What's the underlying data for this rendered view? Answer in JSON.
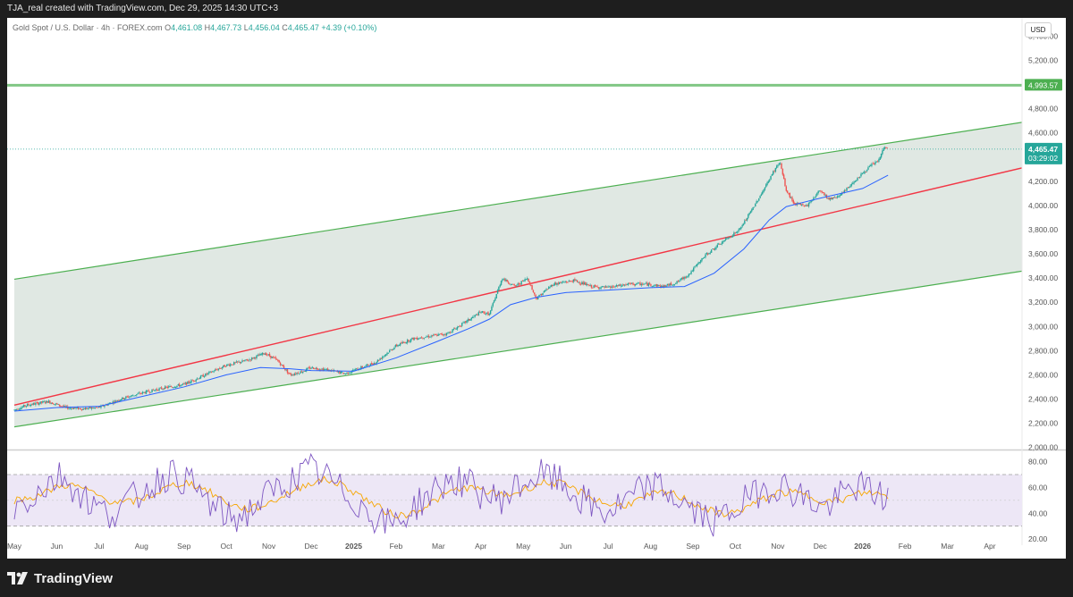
{
  "header": {
    "caption": "TJA_real created with TradingView.com, Dec 29, 2025 14:30 UTC+3"
  },
  "legend": {
    "symbol": "Gold Spot / U.S. Dollar · 4h · FOREX.com",
    "open_label": "O",
    "open": "4,461.08",
    "high_label": "H",
    "high": "4,467.73",
    "low_label": "L",
    "low": "4,456.04",
    "close_label": "C",
    "close": "4,465.47",
    "change": "+4.39 (+0.10%)"
  },
  "currency_button": "USD",
  "footer": {
    "brand": "TradingView"
  },
  "colors": {
    "up": "#26a69a",
    "down": "#ef5350",
    "channel": "#4caf50",
    "channel_fill": "#dde5e0",
    "mid_line": "#f23645",
    "ma": "#2962ff",
    "rsi": "#7e57c2",
    "rsi_ma": "#f7a600",
    "rsi_band": "#ede7f6",
    "target_line": "#81c784",
    "target_tag": "#4caf50",
    "price_tag": "#26a69a"
  },
  "chart_data": [
    {
      "type": "candlestick",
      "title": "Gold Spot / U.S. Dollar · 4h · FOREX.com",
      "y_axis_ticks": [
        "5,400.00",
        "5,200.00",
        "4,800.00",
        "4,600.00",
        "4,200.00",
        "4,000.00",
        "3,800.00",
        "3,600.00",
        "3,400.00",
        "3,200.00",
        "3,000.00",
        "2,800.00",
        "2,600.00",
        "2,400.00",
        "2,200.00",
        "2,000.00"
      ],
      "y_tick_values": [
        5400,
        5200,
        4800,
        4600,
        4200,
        4000,
        3800,
        3600,
        3400,
        3200,
        3000,
        2800,
        2600,
        2400,
        2200,
        2000
      ],
      "ylim": [
        1990,
        5550
      ],
      "x_axis_ticks": [
        "May",
        "Jun",
        "Jul",
        "Aug",
        "Sep",
        "Oct",
        "Nov",
        "Dec",
        "2025",
        "Feb",
        "Mar",
        "Apr",
        "May",
        "Jun",
        "Jul",
        "Aug",
        "Sep",
        "Oct",
        "Nov",
        "Dec",
        "2026",
        "Feb",
        "Mar",
        "Apr"
      ],
      "x_tick_index": [
        0,
        1,
        2,
        3,
        4,
        5,
        6,
        7,
        8,
        9,
        10,
        11,
        12,
        13,
        14,
        15,
        16,
        17,
        18,
        19,
        20,
        21,
        22,
        23
      ],
      "price_path": [
        [
          0,
          2310
        ],
        [
          0.3,
          2350
        ],
        [
          0.8,
          2380
        ],
        [
          1.2,
          2330
        ],
        [
          1.6,
          2320
        ],
        [
          2,
          2330
        ],
        [
          2.5,
          2400
        ],
        [
          3,
          2450
        ],
        [
          3.5,
          2490
        ],
        [
          4,
          2520
        ],
        [
          4.5,
          2600
        ],
        [
          5,
          2680
        ],
        [
          5.5,
          2720
        ],
        [
          5.9,
          2780
        ],
        [
          6.2,
          2720
        ],
        [
          6.5,
          2600
        ],
        [
          6.8,
          2630
        ],
        [
          7,
          2660
        ],
        [
          7.4,
          2640
        ],
        [
          7.8,
          2610
        ],
        [
          8.1,
          2650
        ],
        [
          8.5,
          2700
        ],
        [
          9,
          2840
        ],
        [
          9.4,
          2900
        ],
        [
          9.8,
          2920
        ],
        [
          10.2,
          2940
        ],
        [
          10.7,
          3050
        ],
        [
          11,
          3120
        ],
        [
          11.2,
          3100
        ],
        [
          11.5,
          3400
        ],
        [
          11.8,
          3330
        ],
        [
          12.1,
          3400
        ],
        [
          12.3,
          3230
        ],
        [
          12.7,
          3350
        ],
        [
          13.2,
          3380
        ],
        [
          13.6,
          3330
        ],
        [
          14,
          3320
        ],
        [
          14.5,
          3350
        ],
        [
          14.9,
          3350
        ],
        [
          15.3,
          3330
        ],
        [
          15.6,
          3360
        ],
        [
          15.9,
          3430
        ],
        [
          16.3,
          3590
        ],
        [
          16.7,
          3700
        ],
        [
          17.1,
          3800
        ],
        [
          17.4,
          3970
        ],
        [
          17.7,
          4150
        ],
        [
          17.9,
          4280
        ],
        [
          18.05,
          4360
        ],
        [
          18.2,
          4120
        ],
        [
          18.4,
          4010
        ],
        [
          18.7,
          4000
        ],
        [
          19,
          4130
        ],
        [
          19.2,
          4050
        ],
        [
          19.5,
          4090
        ],
        [
          19.8,
          4200
        ],
        [
          20.2,
          4330
        ],
        [
          20.4,
          4380
        ],
        [
          20.5,
          4480
        ],
        [
          20.55,
          4480
        ],
        [
          20.6,
          4465
        ]
      ],
      "ma_path": [
        [
          0,
          2300
        ],
        [
          1,
          2330
        ],
        [
          2,
          2340
        ],
        [
          3,
          2420
        ],
        [
          4,
          2500
        ],
        [
          5,
          2600
        ],
        [
          5.8,
          2660
        ],
        [
          6.5,
          2650
        ],
        [
          7,
          2635
        ],
        [
          8,
          2630
        ],
        [
          9,
          2740
        ],
        [
          10,
          2880
        ],
        [
          10.7,
          2980
        ],
        [
          11.2,
          3060
        ],
        [
          11.7,
          3180
        ],
        [
          12.3,
          3240
        ],
        [
          13,
          3280
        ],
        [
          14,
          3300
        ],
        [
          15,
          3320
        ],
        [
          15.8,
          3330
        ],
        [
          16.5,
          3440
        ],
        [
          17.2,
          3640
        ],
        [
          17.8,
          3880
        ],
        [
          18.2,
          3990
        ],
        [
          19,
          4060
        ],
        [
          20,
          4140
        ],
        [
          20.6,
          4250
        ]
      ],
      "channel_upper": [
        [
          0,
          3390
        ],
        [
          24,
          4700
        ]
      ],
      "channel_lower": [
        [
          0,
          2170
        ],
        [
          24,
          3470
        ]
      ],
      "mid_line": [
        [
          0,
          2350
        ],
        [
          24,
          4330
        ]
      ],
      "target_line": {
        "value": 4993.57,
        "label": "4,993.57"
      },
      "last_price": {
        "value": 4465.47,
        "label": "4,465.47",
        "countdown": "03:29:02"
      },
      "x_scale": {
        "index_start": 0,
        "index_end": 23
      }
    },
    {
      "type": "line",
      "title": "RSI",
      "y_axis_ticks": [
        "80.00",
        "60.00",
        "40.00",
        "20.00"
      ],
      "y_tick_values": [
        80,
        60,
        40,
        20
      ],
      "ylim": [
        18,
        88
      ],
      "band": [
        30,
        70
      ],
      "midline": 50,
      "series": [
        {
          "values": [
            44,
            52,
            61,
            70,
            58,
            47,
            39,
            46,
            55,
            64,
            71,
            66,
            54,
            42,
            35,
            41,
            52,
            60,
            67,
            74,
            68,
            57,
            48,
            38,
            31,
            37,
            49,
            58,
            66,
            63,
            55,
            50,
            58,
            66,
            70,
            64,
            53,
            45,
            40,
            47,
            56,
            62,
            55,
            46,
            38,
            33,
            42,
            51,
            59,
            62,
            57,
            49,
            44,
            53,
            61,
            57,
            50
          ]
        },
        {
          "values": [
            50,
            52,
            56,
            62,
            61,
            56,
            50,
            48,
            50,
            55,
            61,
            64,
            60,
            53,
            46,
            43,
            46,
            52,
            58,
            64,
            66,
            62,
            55,
            47,
            40,
            38,
            43,
            50,
            57,
            60,
            58,
            54,
            55,
            60,
            64,
            63,
            58,
            52,
            47,
            46,
            50,
            55,
            56,
            51,
            45,
            40,
            40,
            45,
            51,
            56,
            56,
            53,
            49,
            50,
            55,
            56,
            53
          ]
        }
      ]
    }
  ]
}
